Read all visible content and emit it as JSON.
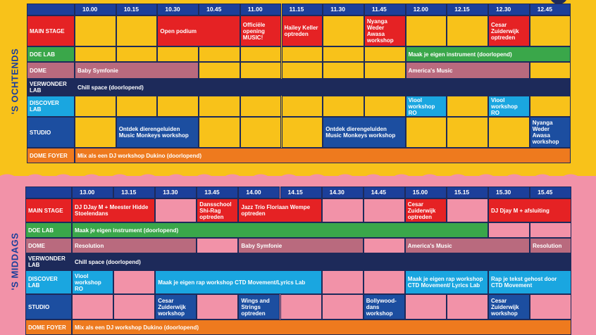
{
  "morning": {
    "side_label": "'S OCHTENDS",
    "times": [
      "10.00",
      "10.15",
      "10.30",
      "10.45",
      "11.00",
      "11.15",
      "11.30",
      "11.45",
      "12.00",
      "12.15",
      "12.30",
      "12.45"
    ],
    "rows": [
      {
        "label": "MAIN STAGE",
        "color": "#e52224",
        "h": 44,
        "cells": [
          {
            "c": 1,
            "s": 1,
            "bg": "yellow",
            "t": ""
          },
          {
            "c": 2,
            "s": 1,
            "bg": "yellow",
            "t": ""
          },
          {
            "c": 3,
            "s": 2,
            "bg": "red",
            "t": "Open podium"
          },
          {
            "c": 5,
            "s": 1,
            "bg": "red",
            "t": "Officiële opening MUSIC!"
          },
          {
            "c": 6,
            "s": 1,
            "bg": "red",
            "t": "Hailey Keller optreden"
          },
          {
            "c": 7,
            "s": 1,
            "bg": "yellow",
            "t": ""
          },
          {
            "c": 8,
            "s": 1,
            "bg": "red",
            "t": "Nyanga Weder Awasa workshop"
          },
          {
            "c": 9,
            "s": 1,
            "bg": "yellow",
            "t": ""
          },
          {
            "c": 10,
            "s": 1,
            "bg": "yellow",
            "t": ""
          },
          {
            "c": 11,
            "s": 1,
            "bg": "red",
            "t": "Cesar Zuiderwijk optreden"
          },
          {
            "c": 12,
            "s": 1,
            "bg": "yellow",
            "t": ""
          }
        ]
      },
      {
        "label": "DOE LAB",
        "color": "#3aa74a",
        "h": 22,
        "cells": [
          {
            "c": 1,
            "s": 1,
            "bg": "yellow",
            "t": ""
          },
          {
            "c": 2,
            "s": 1,
            "bg": "yellow",
            "t": ""
          },
          {
            "c": 3,
            "s": 1,
            "bg": "yellow",
            "t": ""
          },
          {
            "c": 4,
            "s": 1,
            "bg": "yellow",
            "t": ""
          },
          {
            "c": 5,
            "s": 1,
            "bg": "yellow",
            "t": ""
          },
          {
            "c": 6,
            "s": 1,
            "bg": "yellow",
            "t": ""
          },
          {
            "c": 7,
            "s": 1,
            "bg": "yellow",
            "t": ""
          },
          {
            "c": 8,
            "s": 1,
            "bg": "yellow",
            "t": ""
          },
          {
            "c": 9,
            "s": 4,
            "bg": "green",
            "t": "Maak je eigen instrument (doorlopend)"
          }
        ]
      },
      {
        "label": "DOME",
        "color": "#b96a7e",
        "h": 24,
        "cells": [
          {
            "c": 1,
            "s": 3,
            "bg": "mauve",
            "t": "Baby Symfonie"
          },
          {
            "c": 4,
            "s": 1,
            "bg": "yellow",
            "t": ""
          },
          {
            "c": 5,
            "s": 1,
            "bg": "yellow",
            "t": ""
          },
          {
            "c": 6,
            "s": 1,
            "bg": "yellow",
            "t": ""
          },
          {
            "c": 7,
            "s": 1,
            "bg": "yellow",
            "t": ""
          },
          {
            "c": 8,
            "s": 1,
            "bg": "yellow",
            "t": ""
          },
          {
            "c": 9,
            "s": 3,
            "bg": "mauve",
            "t": "America's Music"
          },
          {
            "c": 12,
            "s": 1,
            "bg": "yellow",
            "t": ""
          }
        ]
      },
      {
        "label": "VERWONDER LAB",
        "color": "#1d2a5a",
        "h": 24,
        "cells": [
          {
            "c": 1,
            "s": 12,
            "bg": "navy",
            "t": "Chill space (doorlopend)"
          }
        ]
      },
      {
        "label": "DISCOVER LAB",
        "color": "#1aa6e0",
        "h": 30,
        "cells": [
          {
            "c": 1,
            "s": 1,
            "bg": "yellow",
            "t": ""
          },
          {
            "c": 2,
            "s": 1,
            "bg": "yellow",
            "t": ""
          },
          {
            "c": 3,
            "s": 1,
            "bg": "yellow",
            "t": ""
          },
          {
            "c": 4,
            "s": 1,
            "bg": "yellow",
            "t": ""
          },
          {
            "c": 5,
            "s": 1,
            "bg": "yellow",
            "t": ""
          },
          {
            "c": 6,
            "s": 1,
            "bg": "yellow",
            "t": ""
          },
          {
            "c": 7,
            "s": 1,
            "bg": "yellow",
            "t": ""
          },
          {
            "c": 8,
            "s": 1,
            "bg": "yellow",
            "t": ""
          },
          {
            "c": 9,
            "s": 1,
            "bg": "cyan",
            "t": "Viool workshop RO"
          },
          {
            "c": 10,
            "s": 1,
            "bg": "yellow",
            "t": ""
          },
          {
            "c": 11,
            "s": 1,
            "bg": "cyan",
            "t": "Viool workshop RO"
          },
          {
            "c": 12,
            "s": 1,
            "bg": "yellow",
            "t": ""
          }
        ]
      },
      {
        "label": "STUDIO",
        "color": "#1c4ea0",
        "h": 44,
        "cells": [
          {
            "c": 1,
            "s": 1,
            "bg": "yellow",
            "t": ""
          },
          {
            "c": 2,
            "s": 2,
            "bg": "blue",
            "t": "Ontdek dierengeluiden Music Monkeys workshop"
          },
          {
            "c": 4,
            "s": 1,
            "bg": "yellow",
            "t": ""
          },
          {
            "c": 5,
            "s": 1,
            "bg": "yellow",
            "t": ""
          },
          {
            "c": 6,
            "s": 1,
            "bg": "yellow",
            "t": ""
          },
          {
            "c": 7,
            "s": 2,
            "bg": "blue",
            "t": "Ontdek dierengeluiden Music Monkeys workshop"
          },
          {
            "c": 9,
            "s": 1,
            "bg": "yellow",
            "t": ""
          },
          {
            "c": 10,
            "s": 1,
            "bg": "yellow",
            "t": ""
          },
          {
            "c": 11,
            "s": 1,
            "bg": "yellow",
            "t": ""
          },
          {
            "c": 12,
            "s": 1,
            "bg": "blue",
            "t": "Nyanga Weder Awasa workshop"
          }
        ]
      },
      {
        "label": "DOME FOYER",
        "color": "#ee7a1e",
        "h": 22,
        "cells": [
          {
            "c": 1,
            "s": 12,
            "bg": "orange",
            "t": "Mix als een DJ workshop Dukino (doorlopend)"
          }
        ]
      }
    ]
  },
  "afternoon": {
    "side_label": "'S MIDDAGS",
    "times": [
      "13.00",
      "13.15",
      "13.30",
      "13.45",
      "14.00",
      "14.15",
      "14.30",
      "14.45",
      "15.00",
      "15.15",
      "15.30",
      "15.45"
    ],
    "rows": [
      {
        "label": "MAIN STAGE",
        "color": "#e52224",
        "h": 34,
        "cells": [
          {
            "c": 1,
            "s": 2,
            "bg": "red",
            "t": "DJ DJay M + Meester Hidde Stoelendans"
          },
          {
            "c": 3,
            "s": 1,
            "bg": "pink",
            "t": ""
          },
          {
            "c": 4,
            "s": 1,
            "bg": "red",
            "t": "Dansschool Shi-Rag optreden"
          },
          {
            "c": 5,
            "s": 2,
            "bg": "red",
            "t": "Jazz Trio Floriaan Wempe optreden"
          },
          {
            "c": 7,
            "s": 1,
            "bg": "pink",
            "t": ""
          },
          {
            "c": 8,
            "s": 1,
            "bg": "pink",
            "t": ""
          },
          {
            "c": 9,
            "s": 1,
            "bg": "red",
            "t": "Cesar Zuiderwijk optreden"
          },
          {
            "c": 10,
            "s": 1,
            "bg": "pink",
            "t": ""
          },
          {
            "c": 11,
            "s": 2,
            "bg": "red",
            "t": "DJ Djay M + afsluiting"
          }
        ]
      },
      {
        "label": "DOE LAB",
        "color": "#3aa74a",
        "h": 22,
        "cells": [
          {
            "c": 1,
            "s": 10,
            "bg": "green",
            "t": "Maak je eigen instrument (doorlopend)"
          },
          {
            "c": 11,
            "s": 1,
            "bg": "pink",
            "t": ""
          },
          {
            "c": 12,
            "s": 1,
            "bg": "pink",
            "t": ""
          }
        ]
      },
      {
        "label": "DOME",
        "color": "#b96a7e",
        "h": 22,
        "cells": [
          {
            "c": 1,
            "s": 3,
            "bg": "mauve",
            "t": "Resolution"
          },
          {
            "c": 4,
            "s": 1,
            "bg": "pink",
            "t": ""
          },
          {
            "c": 5,
            "s": 3,
            "bg": "mauve",
            "t": "Baby Symfonie"
          },
          {
            "c": 8,
            "s": 1,
            "bg": "pink",
            "t": ""
          },
          {
            "c": 9,
            "s": 3,
            "bg": "mauve",
            "t": "America's Music"
          },
          {
            "c": 12,
            "s": 1,
            "bg": "mauve",
            "t": "Resolution"
          }
        ]
      },
      {
        "label": "VERWONDER LAB",
        "color": "#1d2a5a",
        "h": 24,
        "cells": [
          {
            "c": 1,
            "s": 12,
            "bg": "navy",
            "t": "Chill space (doorlopend)"
          }
        ]
      },
      {
        "label": "DISCOVER LAB",
        "color": "#1aa6e0",
        "h": 34,
        "cells": [
          {
            "c": 1,
            "s": 1,
            "bg": "cyan",
            "t": "Viool workshop RO"
          },
          {
            "c": 2,
            "s": 1,
            "bg": "pink",
            "t": ""
          },
          {
            "c": 3,
            "s": 4,
            "bg": "cyan",
            "t": "Maak je eigen rap workshop CTD Movement/Lyrics Lab"
          },
          {
            "c": 7,
            "s": 1,
            "bg": "pink",
            "t": ""
          },
          {
            "c": 8,
            "s": 1,
            "bg": "pink",
            "t": ""
          },
          {
            "c": 9,
            "s": 2,
            "bg": "cyan",
            "t": "Maak je eigen rap workshop CTD Movement/ Lyrics Lab"
          },
          {
            "c": 11,
            "s": 2,
            "bg": "cyan",
            "t": "Rap je tekst gehost door CTD Movement"
          }
        ]
      },
      {
        "label": "STUDIO",
        "color": "#1c4ea0",
        "h": 36,
        "cells": [
          {
            "c": 1,
            "s": 1,
            "bg": "pink",
            "t": ""
          },
          {
            "c": 2,
            "s": 1,
            "bg": "pink",
            "t": ""
          },
          {
            "c": 3,
            "s": 1,
            "bg": "blue",
            "t": "Cesar Zuiderwijk workshop"
          },
          {
            "c": 4,
            "s": 1,
            "bg": "pink",
            "t": ""
          },
          {
            "c": 5,
            "s": 1,
            "bg": "blue",
            "t": "Wings and Strings optreden"
          },
          {
            "c": 6,
            "s": 1,
            "bg": "pink",
            "t": ""
          },
          {
            "c": 7,
            "s": 1,
            "bg": "pink",
            "t": ""
          },
          {
            "c": 8,
            "s": 1,
            "bg": "blue",
            "t": "Bollywood-dans workshop"
          },
          {
            "c": 9,
            "s": 1,
            "bg": "pink",
            "t": ""
          },
          {
            "c": 10,
            "s": 1,
            "bg": "pink",
            "t": ""
          },
          {
            "c": 11,
            "s": 1,
            "bg": "blue",
            "t": "Cesar Zuiderwijk workshop"
          },
          {
            "c": 12,
            "s": 1,
            "bg": "pink",
            "t": ""
          }
        ]
      },
      {
        "label": "DOME FOYER",
        "color": "#ee7a1e",
        "h": 22,
        "cells": [
          {
            "c": 1,
            "s": 12,
            "bg": "orange",
            "t": "Mix als een DJ workshop Dukino (doorlopend)"
          }
        ]
      }
    ]
  }
}
